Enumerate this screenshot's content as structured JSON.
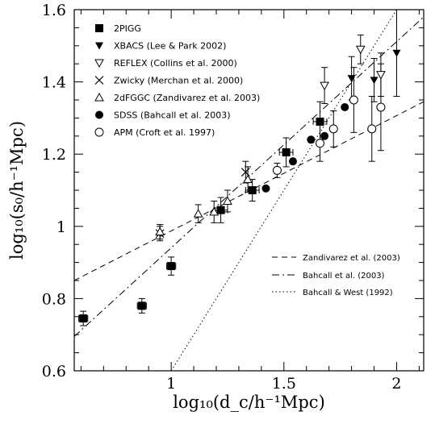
{
  "chart_data": {
    "type": "scatter",
    "xlabel": "log₁₀(d_c/h⁻¹Mpc)",
    "ylabel": "log₁₀(s₀/h⁻¹Mpc)",
    "xlim": [
      0.57,
      2.12
    ],
    "ylim": [
      0.6,
      1.6
    ],
    "xticks": [
      {
        "value": 1,
        "label": "1"
      },
      {
        "value": 1.5,
        "label": "1.5"
      },
      {
        "value": 2,
        "label": "2"
      }
    ],
    "yticks": [
      {
        "value": 0.6,
        "label": "0.6"
      },
      {
        "value": 0.8,
        "label": "0.8"
      },
      {
        "value": 1.0,
        "label": "1"
      },
      {
        "value": 1.2,
        "label": "1.2"
      },
      {
        "value": 1.4,
        "label": "1.4"
      },
      {
        "value": 1.6,
        "label": "1.6"
      }
    ],
    "grid": false,
    "legend_position": "top-left",
    "series": [
      {
        "name": "2PIGG",
        "marker": "filled-square",
        "points": [
          {
            "x": 0.61,
            "y": 0.745,
            "yerr": 0.02,
            "xerr": 0.02
          },
          {
            "x": 0.87,
            "y": 0.78,
            "yerr": 0.02,
            "xerr": 0.02
          },
          {
            "x": 1.0,
            "y": 0.89,
            "yerr": 0.025,
            "xerr": 0.02
          },
          {
            "x": 1.22,
            "y": 1.045,
            "yerr": 0.035,
            "xerr": 0.03
          },
          {
            "x": 1.36,
            "y": 1.1,
            "yerr": 0.03,
            "xerr": 0.03
          },
          {
            "x": 1.51,
            "y": 1.205,
            "yerr": 0.04,
            "xerr": 0.03
          },
          {
            "x": 1.66,
            "y": 1.29,
            "yerr": 0.055,
            "xerr": 0.03
          }
        ]
      },
      {
        "name": "XBACS (Lee & Park 2002)",
        "marker": "filled-triangle-down",
        "points": [
          {
            "x": 1.8,
            "y": 1.41,
            "yerr": 0.06
          },
          {
            "x": 1.9,
            "y": 1.405,
            "yerr": 0.06
          },
          {
            "x": 2.0,
            "y": 1.48,
            "yerr": 0.12
          }
        ]
      },
      {
        "name": "REFLEX (Collins et al. 2000)",
        "marker": "open-triangle-down",
        "points": [
          {
            "x": 1.68,
            "y": 1.39,
            "yerr": 0.05
          },
          {
            "x": 1.84,
            "y": 1.49,
            "yerr": 0.04
          },
          {
            "x": 1.93,
            "y": 1.42,
            "yerr": 0.06
          }
        ]
      },
      {
        "name": "Zwicky (Merchan et al. 2000)",
        "marker": "cross",
        "points": [
          {
            "x": 0.95,
            "y": 0.98,
            "yerr": 0.02
          },
          {
            "x": 1.33,
            "y": 1.15,
            "yerr": 0.03
          }
        ]
      },
      {
        "name": "2dFGGC (Zandivarez et al. 2003)",
        "marker": "open-triangle-up",
        "points": [
          {
            "x": 0.95,
            "y": 0.985,
            "yerr": 0.02
          },
          {
            "x": 1.12,
            "y": 1.035,
            "yerr": 0.025
          },
          {
            "x": 1.19,
            "y": 1.04,
            "yerr": 0.03
          },
          {
            "x": 1.25,
            "y": 1.07,
            "yerr": 0.03
          },
          {
            "x": 1.34,
            "y": 1.13,
            "yerr": 0.035
          }
        ]
      },
      {
        "name": "SDSS (Bahcall et al. 2003)",
        "marker": "filled-circle",
        "points": [
          {
            "x": 1.42,
            "y": 1.105
          },
          {
            "x": 1.54,
            "y": 1.18
          },
          {
            "x": 1.62,
            "y": 1.24
          },
          {
            "x": 1.68,
            "y": 1.25
          },
          {
            "x": 1.77,
            "y": 1.33
          }
        ]
      },
      {
        "name": "APM (Croft et al. 1997)",
        "marker": "open-circle",
        "points": [
          {
            "x": 1.47,
            "y": 1.155,
            "yerr": 0.02
          },
          {
            "x": 1.66,
            "y": 1.23,
            "yerr": 0.05
          },
          {
            "x": 1.72,
            "y": 1.27,
            "yerr": 0.05
          },
          {
            "x": 1.81,
            "y": 1.35,
            "yerr": 0.09
          },
          {
            "x": 1.89,
            "y": 1.27,
            "yerr": 0.09
          },
          {
            "x": 1.93,
            "y": 1.33,
            "yerr": 0.12
          }
        ]
      }
    ],
    "lines": [
      {
        "name": "Zandivarez et al. (2003)",
        "style": "dashed",
        "from": [
          0.57,
          0.85
        ],
        "to": [
          2.12,
          1.345
        ]
      },
      {
        "name": "Bahcall et al. (2003)",
        "style": "dashdot",
        "from": [
          0.57,
          0.695
        ],
        "to": [
          2.12,
          1.58
        ]
      },
      {
        "name": "Bahcall & West (1992)",
        "style": "dotted",
        "from": [
          1.0,
          0.6
        ],
        "to": [
          2.0,
          1.6
        ]
      }
    ]
  }
}
